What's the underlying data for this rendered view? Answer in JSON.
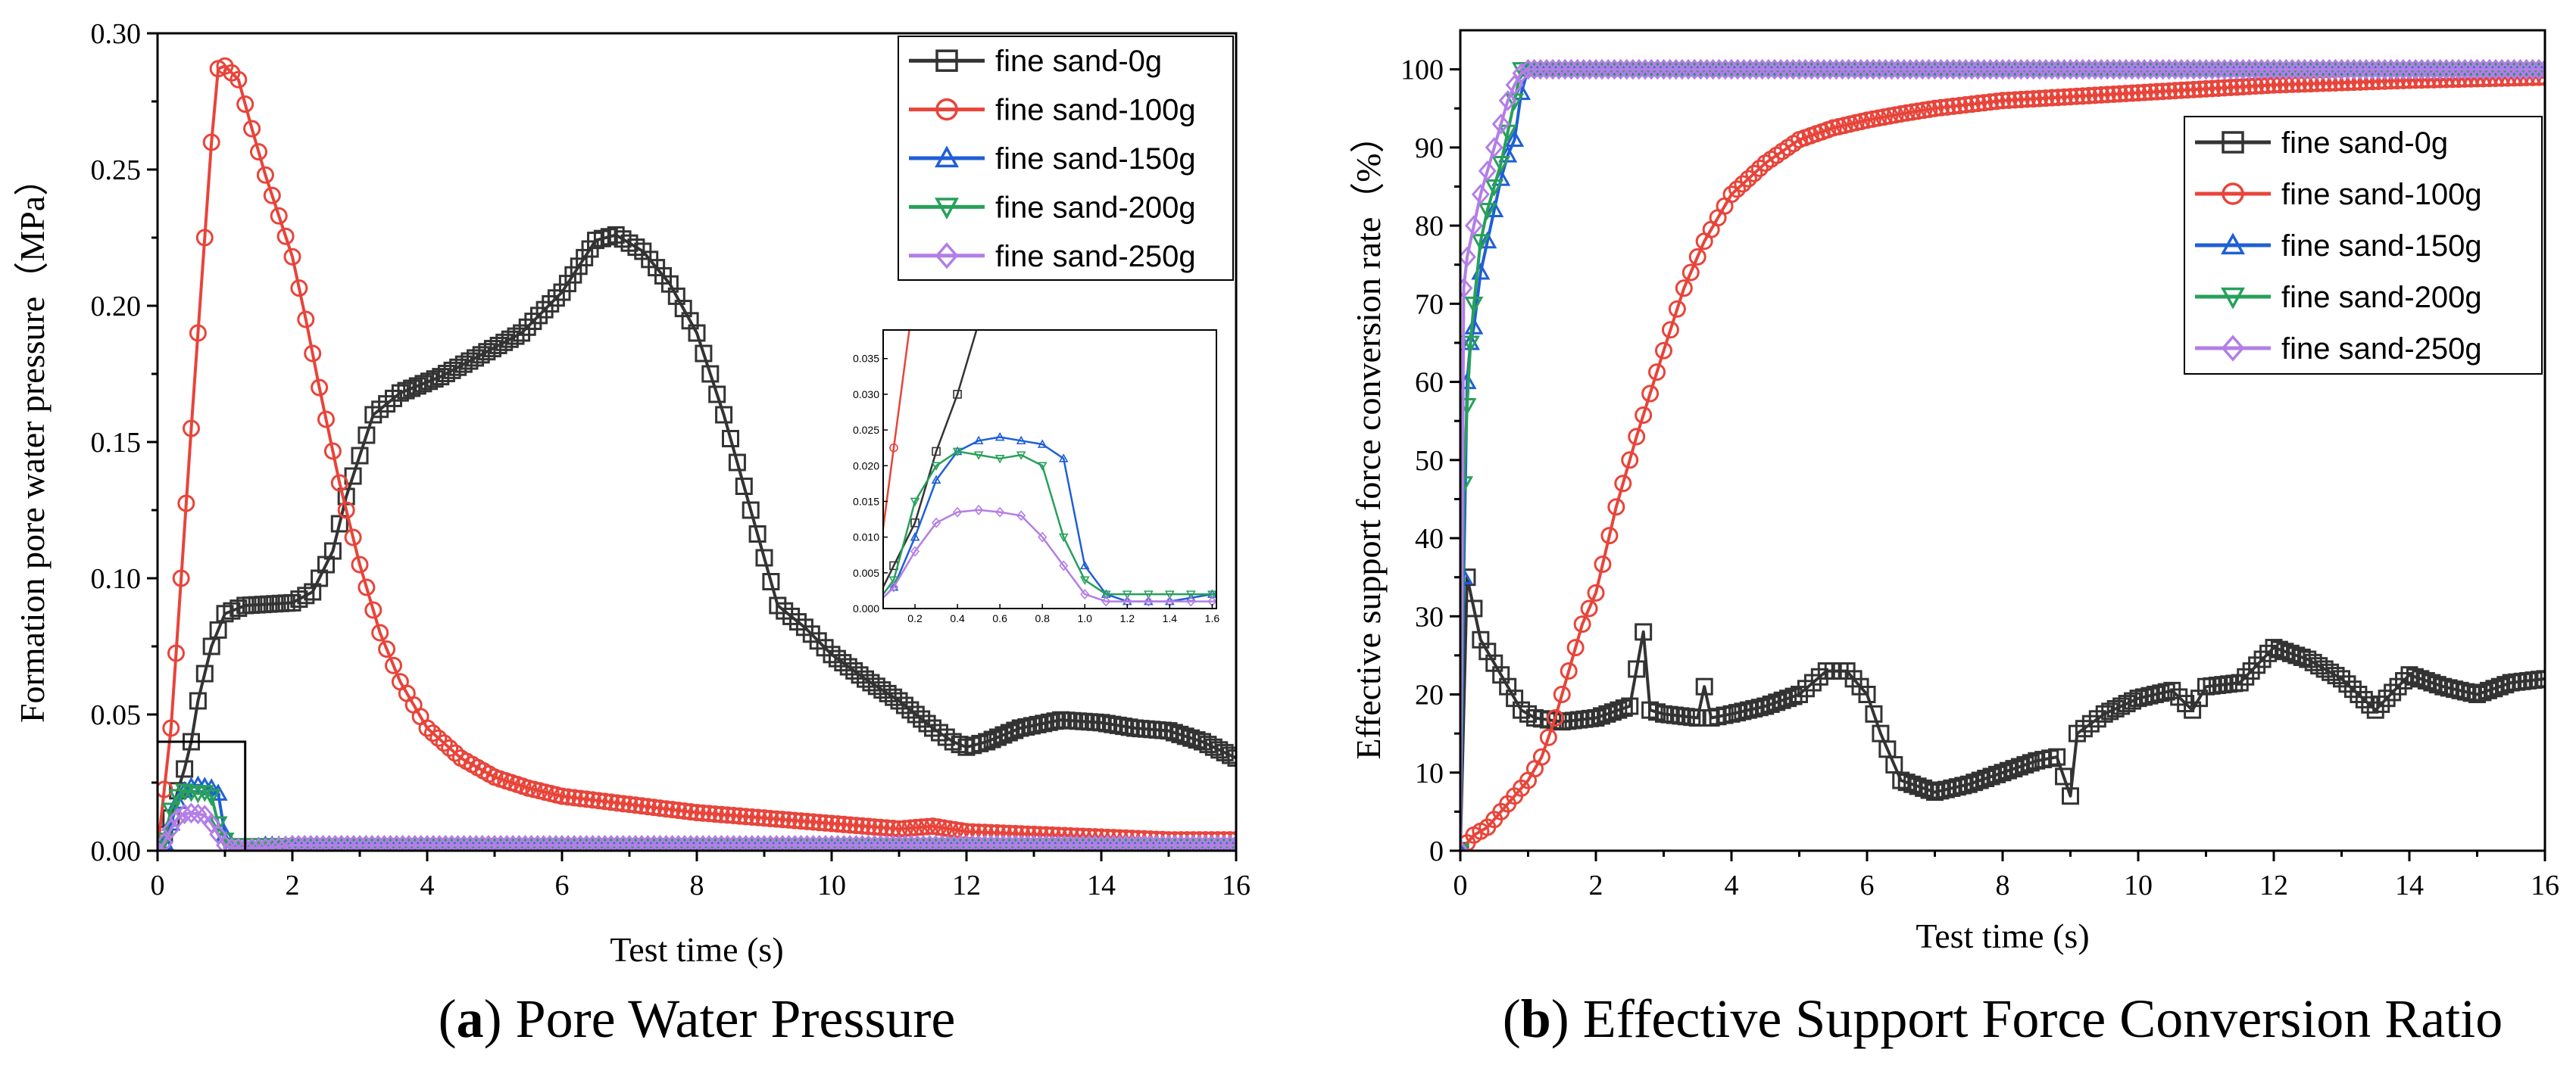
{
  "colors": {
    "fine sand-0g": "#333333",
    "fine sand-100g": "#e8443a",
    "fine sand-150g": "#1f5fd6",
    "fine sand-200g": "#27a05a",
    "fine sand-250g": "#b37ee6"
  },
  "chart_data": [
    {
      "id": "a",
      "type": "line",
      "caption_letter": "a",
      "caption_text": " Pore Water Pressure",
      "xlabel": "Test time (s)",
      "ylabel": "Formation pore water pressure（MPa）",
      "xlim": [
        0,
        16
      ],
      "ylim": [
        0,
        0.3
      ],
      "xticks": [
        "0",
        "2",
        "4",
        "6",
        "8",
        "10",
        "12",
        "14",
        "16"
      ],
      "yticks": [
        "0.00",
        "0.05",
        "0.10",
        "0.15",
        "0.20",
        "0.25",
        "0.30"
      ],
      "legend_position": "top-right",
      "series": [
        {
          "name": "fine sand-0g",
          "marker": "square",
          "x": [
            0,
            0.2,
            0.3,
            0.4,
            0.5,
            0.6,
            0.8,
            1.0,
            1.3,
            2.0,
            2.3,
            2.6,
            2.8,
            3.2,
            3.6,
            4.2,
            4.8,
            5.4,
            6.0,
            6.5,
            6.8,
            7.2,
            7.6,
            8.0,
            8.4,
            8.8,
            9.2,
            9.6,
            10.0,
            10.5,
            11.0,
            11.5,
            11.8,
            12.0,
            12.3,
            12.8,
            13.4,
            14.0,
            14.5,
            15.0,
            15.5,
            16.0
          ],
          "y": [
            0,
            0.012,
            0.022,
            0.03,
            0.04,
            0.055,
            0.075,
            0.087,
            0.09,
            0.091,
            0.095,
            0.11,
            0.13,
            0.16,
            0.168,
            0.174,
            0.182,
            0.19,
            0.205,
            0.224,
            0.226,
            0.22,
            0.208,
            0.19,
            0.16,
            0.125,
            0.09,
            0.082,
            0.072,
            0.063,
            0.055,
            0.045,
            0.04,
            0.038,
            0.04,
            0.045,
            0.048,
            0.047,
            0.045,
            0.044,
            0.04,
            0.034
          ]
        },
        {
          "name": "fine sand-100g",
          "marker": "circle",
          "x": [
            0,
            0.2,
            0.35,
            0.5,
            0.6,
            0.7,
            0.8,
            0.9,
            1.0,
            1.2,
            1.4,
            1.6,
            1.8,
            2.0,
            2.2,
            2.4,
            2.7,
            3.0,
            3.3,
            3.6,
            4.0,
            4.5,
            5.0,
            5.5,
            6.0,
            7.0,
            8.0,
            9.0,
            10.0,
            11.0,
            11.5,
            12.0,
            13.0,
            14.0,
            15.0,
            16.0
          ],
          "y": [
            0,
            0.045,
            0.1,
            0.155,
            0.19,
            0.225,
            0.26,
            0.287,
            0.288,
            0.283,
            0.265,
            0.248,
            0.233,
            0.218,
            0.195,
            0.17,
            0.135,
            0.105,
            0.08,
            0.062,
            0.045,
            0.034,
            0.027,
            0.023,
            0.02,
            0.017,
            0.014,
            0.012,
            0.01,
            0.008,
            0.009,
            0.007,
            0.006,
            0.005,
            0.004,
            0.004
          ]
        },
        {
          "name": "fine sand-150g",
          "marker": "triangle-up",
          "x": [
            0,
            0.1,
            0.2,
            0.3,
            0.4,
            0.5,
            0.6,
            0.7,
            0.8,
            0.9,
            1.0,
            1.1,
            1.2,
            1.4,
            1.6,
            2.0,
            4.0,
            8.0,
            12.0,
            16.0
          ],
          "y": [
            0,
            0.003,
            0.01,
            0.018,
            0.022,
            0.0235,
            0.024,
            0.0235,
            0.023,
            0.021,
            0.006,
            0.002,
            0.001,
            0.001,
            0.002,
            0.002,
            0.002,
            0.002,
            0.002,
            0.002
          ]
        },
        {
          "name": "fine sand-200g",
          "marker": "triangle-down",
          "x": [
            0,
            0.1,
            0.2,
            0.3,
            0.4,
            0.5,
            0.6,
            0.7,
            0.8,
            0.9,
            1.0,
            1.1,
            1.2,
            1.4,
            1.6,
            2.0,
            4.0,
            8.0,
            12.0,
            16.0
          ],
          "y": [
            0,
            0.004,
            0.015,
            0.02,
            0.022,
            0.0215,
            0.021,
            0.0215,
            0.02,
            0.01,
            0.004,
            0.002,
            0.002,
            0.002,
            0.002,
            0.002,
            0.002,
            0.002,
            0.002,
            0.002
          ]
        },
        {
          "name": "fine sand-250g",
          "marker": "diamond",
          "x": [
            0,
            0.1,
            0.2,
            0.3,
            0.4,
            0.5,
            0.6,
            0.7,
            0.8,
            0.9,
            1.0,
            1.1,
            1.2,
            1.4,
            1.6,
            2.0,
            4.0,
            8.0,
            12.0,
            16.0
          ],
          "y": [
            0,
            0.003,
            0.008,
            0.012,
            0.0135,
            0.0138,
            0.0135,
            0.013,
            0.01,
            0.006,
            0.002,
            0.001,
            0.001,
            0.001,
            0.001,
            0.002,
            0.002,
            0.002,
            0.002,
            0.002
          ]
        }
      ],
      "inset": {
        "xlim": [
          0.05,
          1.62
        ],
        "ylim": [
          0,
          0.039
        ],
        "xticks": [
          "0.2",
          "0.4",
          "0.6",
          "0.8",
          "1.0",
          "1.2",
          "1.4",
          "1.6"
        ],
        "yticks": [
          "0.000",
          "0.005",
          "0.010",
          "0.015",
          "0.020",
          "0.025",
          "0.030",
          "0.035"
        ],
        "zoom_box_x": [
          0,
          1.3
        ],
        "zoom_box_y": [
          0,
          0.04
        ]
      }
    },
    {
      "id": "b",
      "type": "line",
      "caption_letter": "b",
      "caption_text": " Effective Support Force Conversion Ratio",
      "xlabel": "Test time (s)",
      "ylabel": "Effective support force conversion rate（%）",
      "xlim": [
        0,
        16
      ],
      "ylim": [
        0,
        105
      ],
      "xticks": [
        "0",
        "2",
        "4",
        "6",
        "8",
        "10",
        "12",
        "14",
        "16"
      ],
      "yticks": [
        "0",
        "10",
        "20",
        "30",
        "40",
        "50",
        "60",
        "70",
        "80",
        "90",
        "100"
      ],
      "legend_position": "right",
      "series": [
        {
          "name": "fine sand-0g",
          "marker": "square",
          "x": [
            0,
            0.1,
            0.3,
            0.5,
            0.7,
            0.9,
            1.1,
            1.5,
            2.0,
            2.5,
            2.7,
            2.8,
            3.0,
            3.5,
            3.6,
            3.7,
            4.0,
            4.5,
            5.0,
            5.4,
            5.7,
            6.0,
            6.2,
            6.5,
            7.0,
            7.5,
            8.0,
            8.5,
            8.8,
            9.0,
            9.1,
            9.5,
            10.0,
            10.5,
            10.8,
            11.0,
            11.5,
            12.0,
            12.5,
            13.0,
            13.5,
            14.0,
            14.5,
            15.0,
            15.5,
            16.0
          ],
          "y": [
            0,
            35,
            27,
            24,
            21,
            18,
            17,
            16.5,
            17,
            18.5,
            28,
            18,
            17.5,
            17,
            21,
            17,
            17.5,
            18.5,
            20,
            23,
            23,
            20,
            15,
            9,
            7.5,
            8.5,
            10,
            11.5,
            12,
            7,
            15,
            17.5,
            19.5,
            20.5,
            18,
            21,
            21.5,
            26,
            24.5,
            22,
            18,
            22.5,
            21,
            20,
            21.5,
            22
          ]
        },
        {
          "name": "fine sand-100g",
          "marker": "circle",
          "x": [
            0,
            0.2,
            0.4,
            0.6,
            0.8,
            1.0,
            1.2,
            1.4,
            1.6,
            1.8,
            2.0,
            2.3,
            2.6,
            3.0,
            3.3,
            3.6,
            4.0,
            4.5,
            5.0,
            5.5,
            6.0,
            6.5,
            7.0,
            8.0,
            9.0,
            10.0,
            11.0,
            12.0,
            13.0,
            14.0,
            15.0,
            16.0
          ],
          "y": [
            0,
            2,
            3,
            5,
            7,
            9,
            12,
            17,
            23,
            29,
            33,
            44,
            53,
            64,
            72,
            78,
            84,
            88,
            91,
            92.5,
            93.5,
            94.3,
            95,
            96,
            96.5,
            97,
            97.5,
            98,
            98.3,
            98.6,
            98.8,
            99
          ]
        },
        {
          "name": "fine sand-150g",
          "marker": "triangle-up",
          "x": [
            0,
            0.05,
            0.1,
            0.15,
            0.2,
            0.3,
            0.4,
            0.5,
            0.6,
            0.7,
            0.8,
            0.9,
            1.0,
            2.0,
            4.0,
            8.0,
            12.0,
            16.0
          ],
          "y": [
            0,
            35,
            60,
            65,
            67,
            74,
            78,
            82,
            86,
            89,
            91,
            97,
            100,
            100,
            100,
            100,
            100,
            100
          ]
        },
        {
          "name": "fine sand-200g",
          "marker": "triangle-down",
          "x": [
            0,
            0.05,
            0.1,
            0.15,
            0.2,
            0.3,
            0.4,
            0.5,
            0.6,
            0.7,
            0.8,
            0.9,
            1.0,
            2.0,
            4.0,
            8.0,
            12.0,
            16.0
          ],
          "y": [
            0,
            47,
            57,
            65,
            70,
            78,
            82,
            85,
            88,
            92,
            96,
            100,
            100,
            100,
            100,
            100,
            100,
            100
          ]
        },
        {
          "name": "fine sand-250g",
          "marker": "diamond",
          "x": [
            0,
            0.05,
            0.1,
            0.2,
            0.3,
            0.4,
            0.5,
            0.6,
            0.7,
            0.8,
            0.9,
            1.0,
            2.0,
            4.0,
            8.0,
            12.0,
            16.0
          ],
          "y": [
            0,
            72,
            76,
            80,
            84,
            87,
            90,
            93,
            96,
            98,
            99.5,
            100,
            100,
            100,
            100,
            100,
            100
          ]
        }
      ]
    }
  ]
}
